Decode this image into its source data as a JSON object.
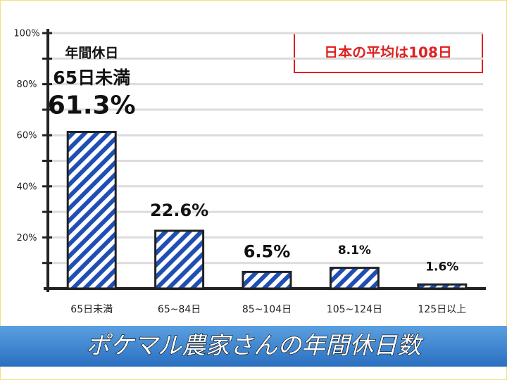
{
  "chart_data": {
    "type": "bar",
    "title": "ポケマル農家さんの年間休日数",
    "annotation": "日本の平均は108日",
    "bar_annotation": [
      "年間休日",
      "65日未満"
    ],
    "categories": [
      "65日未満",
      "65~84日",
      "85~104日",
      "105~124日",
      "125日以上"
    ],
    "values": [
      61.3,
      22.6,
      6.5,
      8.1,
      1.6
    ],
    "value_labels": [
      "61.3%",
      "22.6%",
      "6.5%",
      "8.1%",
      "1.6%"
    ],
    "color": "#1f4fb4",
    "ylim": [
      0,
      100
    ],
    "yticks": [
      {
        "value": 20,
        "label": "20%"
      },
      {
        "value": 40,
        "label": "40%"
      },
      {
        "value": 60,
        "label": "60%"
      },
      {
        "value": 80,
        "label": "80%"
      },
      {
        "value": 100,
        "label": "100%"
      }
    ],
    "minor_yticks": [
      10,
      30,
      50,
      70,
      90
    ],
    "grid": true
  }
}
